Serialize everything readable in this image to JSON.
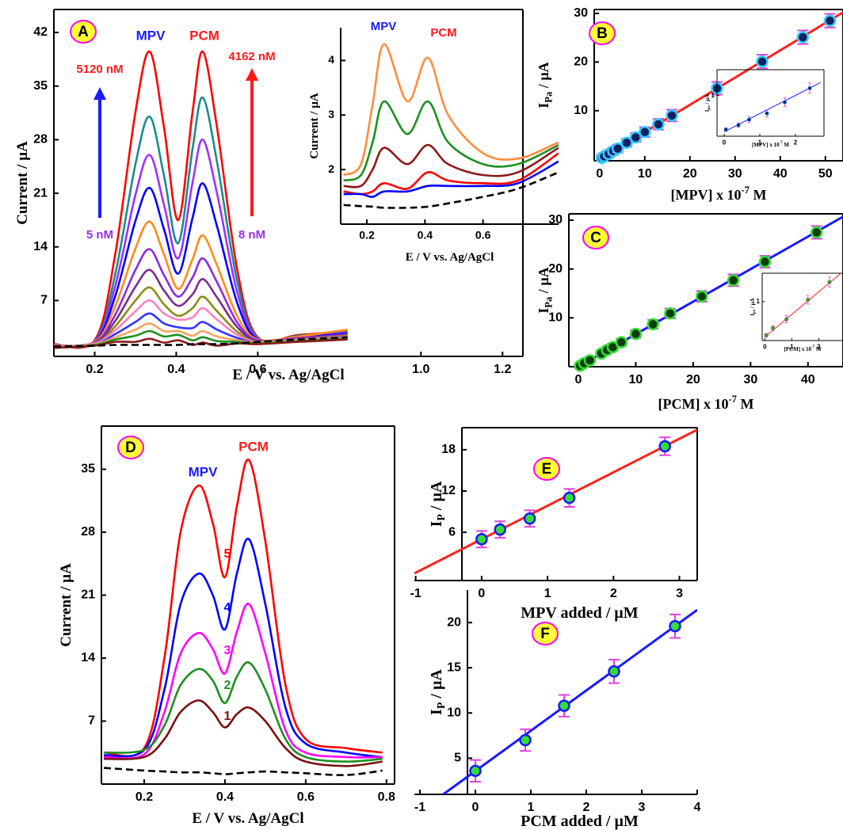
{
  "chart_data": [
    {
      "type": "line",
      "panel_label": "A",
      "x": [
        0.1,
        0.2,
        0.25,
        0.3,
        0.335,
        0.37,
        0.405,
        0.44,
        0.465,
        0.5,
        0.55,
        0.6,
        0.7,
        0.82
      ],
      "series": [
        {
          "color": "#ff0000",
          "values": [
            1.3,
            1.8,
            12.9,
            31.6,
            39.5,
            29.6,
            17.5,
            31.6,
            39.5,
            29.6,
            10.9,
            2.2,
            2.5,
            3.0
          ]
        },
        {
          "color": "#1a8c8c",
          "values": [
            1.2,
            1.7,
            10.3,
            24.8,
            31,
            23.3,
            14.5,
            26.8,
            33.5,
            25.1,
            9.4,
            2.1,
            2.4,
            2.9
          ]
        },
        {
          "color": "#a030ff",
          "values": [
            1.2,
            1.7,
            8.8,
            20.8,
            26,
            19.5,
            12.5,
            22.4,
            28,
            21,
            8,
            2,
            2.3,
            2.8
          ]
        },
        {
          "color": "#0000ff",
          "values": [
            1.1,
            1.6,
            7.5,
            17.4,
            21.7,
            16.3,
            10.5,
            17.8,
            22.3,
            16.7,
            6.6,
            1.9,
            2.2,
            2.7
          ]
        },
        {
          "color": "#ff8c1a",
          "values": [
            1.1,
            1.6,
            6.2,
            13.8,
            17.3,
            13,
            8.5,
            12.4,
            15.5,
            11.6,
            4.9,
            1.9,
            2.3,
            3.2
          ]
        },
        {
          "color": "#8a2be2",
          "values": [
            1,
            1.5,
            5.1,
            11,
            13.7,
            10.3,
            7.5,
            10,
            12.5,
            9.4,
            4.1,
            1.8,
            2.1,
            2.6
          ]
        },
        {
          "color": "#7b2d8e",
          "values": [
            1,
            1.5,
            4.3,
            8.8,
            11,
            8.3,
            6.3,
            7.8,
            9.8,
            7.4,
            3.5,
            1.7,
            2,
            2.5
          ]
        },
        {
          "color": "#8c8c14",
          "values": [
            1,
            1.4,
            3.6,
            7,
            8.7,
            6.5,
            5,
            6,
            7.5,
            5.6,
            2.9,
            1.6,
            1.9,
            2.4
          ]
        },
        {
          "color": "#ff80c0",
          "values": [
            0.9,
            1.4,
            3.1,
            5.6,
            7,
            5.3,
            4.5,
            4.8,
            6,
            4.5,
            2.5,
            1.6,
            1.9,
            2.3
          ]
        },
        {
          "color": "#3333ff",
          "values": [
            0.9,
            1.3,
            2.6,
            4.2,
            5.3,
            4,
            3.5,
            3.4,
            4.2,
            3.2,
            2.1,
            1.5,
            1.8,
            2.2
          ]
        },
        {
          "color": "#f4a460",
          "values": [
            0.9,
            1.3,
            2.2,
            3.2,
            4,
            3,
            3,
            2.4,
            3,
            2.3,
            1.8,
            1.5,
            1.8,
            2.1
          ]
        },
        {
          "color": "#1f8f1f",
          "values": [
            0.8,
            1.2,
            1.9,
            2.4,
            3,
            2.3,
            2.5,
            1.8,
            2.2,
            1.7,
            1.6,
            1.4,
            1.7,
            2
          ]
        },
        {
          "color": "#8b1a1a",
          "values": [
            0.8,
            1.1,
            1.6,
            1.6,
            2,
            1.5,
            1.8,
            1.2,
            1.5,
            1.1,
            1.4,
            1.3,
            1.6,
            1.9
          ]
        },
        {
          "color": "#000000",
          "dashed": true,
          "values": [
            1.0,
            1.1,
            1.2,
            1.2,
            1.2,
            1.2,
            1.2,
            1.3,
            1.3,
            1.3,
            1.4,
            1.6,
            1.9,
            2.2
          ]
        }
      ],
      "xlim": [
        0.1,
        1.25
      ],
      "xticks": [
        0.2,
        0.4,
        0.6,
        {
          "value": 1,
          "label": "1.0"
        },
        1.2
      ],
      "ylim": [
        -0.3,
        45
      ],
      "yticks": [
        7,
        14,
        21,
        28,
        35,
        42
      ],
      "xlabel": {
        "text": "E / V vs. Ag/AgCl"
      },
      "ylabel": {
        "text": "Current / µA"
      },
      "annotations": [
        {
          "text": "MPV",
          "color": "#1a1aff"
        },
        {
          "text": "PCM",
          "color": "#ff1a1a"
        },
        {
          "text": "5120 nM",
          "color": "#ff1a1a"
        },
        {
          "text": "4162 nM",
          "color": "#ff1a1a"
        },
        {
          "text": "5 nM",
          "color": "#9a30e0"
        },
        {
          "text": "8 nM",
          "color": "#9a30e0"
        }
      ]
    },
    {
      "type": "line",
      "x": [
        0.12,
        0.18,
        0.22,
        0.26,
        0.34,
        0.41,
        0.48,
        0.6,
        0.72,
        0.86
      ],
      "series": [
        {
          "color": "#ff8c40",
          "values": [
            1.9,
            2.1,
            3.2,
            4.3,
            3.25,
            4.05,
            3.0,
            2.3,
            2.2,
            2.5
          ]
        },
        {
          "color": "#1f8f1f",
          "values": [
            1.8,
            1.9,
            2.5,
            3.25,
            2.65,
            3.25,
            2.5,
            2.1,
            2.1,
            2.45
          ]
        },
        {
          "color": "#8b1a1a",
          "values": [
            1.7,
            1.7,
            2.0,
            2.4,
            2.1,
            2.45,
            2.1,
            1.9,
            1.95,
            2.4
          ]
        },
        {
          "color": "#ff0000",
          "values": [
            1.6,
            1.55,
            1.6,
            1.75,
            1.65,
            1.95,
            1.8,
            1.75,
            1.8,
            2.3
          ]
        },
        {
          "color": "#0000ff",
          "values": [
            1.55,
            1.55,
            1.5,
            1.6,
            1.6,
            1.7,
            1.7,
            1.7,
            1.75,
            2.15
          ]
        },
        {
          "color": "#000000",
          "dashed": true,
          "values": [
            1.35,
            1.33,
            1.32,
            1.3,
            1.3,
            1.32,
            1.38,
            1.5,
            1.65,
            1.95
          ]
        }
      ],
      "xlim": [
        0.11,
        0.86
      ],
      "xticks": [
        0.2,
        0.4,
        0.6
      ],
      "ylim": [
        1.0,
        4.6
      ],
      "yticks": [
        2,
        3,
        4
      ],
      "xlabel": {
        "text": "E / V vs. Ag/AgCl"
      },
      "ylabel": {
        "text": "Current / µA"
      },
      "annotations": [
        {
          "text": "MPV",
          "color": "#1a1aff"
        },
        {
          "text": "PCM",
          "color": "#ff1a1a"
        }
      ]
    },
    {
      "type": "scatter",
      "panel_label": "B",
      "x": [
        0.5,
        1,
        2,
        3,
        4,
        6,
        8,
        10,
        13,
        16,
        26,
        36,
        45,
        51
      ],
      "values": [
        0.3,
        0.6,
        1.1,
        1.7,
        2.2,
        3.4,
        4.5,
        5.6,
        7.2,
        9,
        14.6,
        20.1,
        25.1,
        28.5
      ],
      "errors": [
        0.6,
        0.6,
        0.7,
        0.7,
        0.8,
        0.8,
        0.9,
        1,
        1.1,
        1.2,
        1.3,
        1.4,
        1.4,
        1.4
      ],
      "fit": {
        "x": [
          0,
          53.9
        ],
        "values": [
          0,
          30.2
        ]
      },
      "marker_color": "#102060",
      "marker_edge": "#33ccff",
      "error_color": "#e040e0",
      "fit_color": "#ff2020",
      "xlim": [
        -1.2,
        53.9
      ],
      "xticks": [
        0,
        10,
        20,
        30,
        40,
        50
      ],
      "ylim": [
        -0.3,
        30.8
      ],
      "yticks": [
        10,
        20,
        30
      ],
      "xlabel": {
        "text": "[MPV] x 10",
        "sup": "-7",
        "tail": " M"
      },
      "ylabel": {
        "text": "I",
        "sub": "Pa",
        "tail": " / µA"
      }
    },
    {
      "type": "scatter",
      "x": [
        0.05,
        0.4,
        0.7,
        1.2,
        1.7,
        2.4
      ],
      "values": [
        0.08,
        0.2,
        0.35,
        0.52,
        0.82,
        1.2
      ],
      "errors": [
        0.05,
        0.06,
        0.08,
        0.1,
        0.12,
        0.14
      ],
      "fit": {
        "x": [
          0,
          2.7
        ],
        "values": [
          0.02,
          1.35
        ]
      },
      "marker_color": "#102060",
      "marker_edge": "#1e90ff",
      "error_color": "#e040e0",
      "fit_color": "#1a1aff",
      "xlim": [
        -0.2,
        2.8
      ],
      "xticks": [
        0,
        1,
        2
      ],
      "ylim": [
        -0.1,
        1.7
      ],
      "yticks": [
        1
      ],
      "xlabel": {
        "text": "[MPV] x 10",
        "sup": "-7",
        "tail": " M"
      },
      "ylabel": {
        "text": "I",
        "sub": "pa",
        "tail": " / µA"
      }
    },
    {
      "type": "scatter",
      "panel_label": "C",
      "x": [
        0.3,
        1,
        2,
        4,
        5,
        6,
        7.5,
        10,
        13,
        16,
        21.5,
        27,
        32.5,
        41.5
      ],
      "values": [
        0.2,
        0.7,
        1.3,
        2.7,
        3.4,
        4,
        5,
        6.7,
        8.7,
        10.9,
        14.4,
        17.7,
        21.5,
        27.5
      ],
      "errors": [
        0.4,
        0.5,
        0.5,
        0.6,
        0.6,
        0.7,
        0.7,
        0.8,
        0.9,
        1,
        1.1,
        1.2,
        1.2,
        1.3
      ],
      "fit": {
        "x": [
          0,
          46.1
        ],
        "values": [
          0,
          30.7
        ]
      },
      "marker_color": "#0a3d0a",
      "marker_edge": "#33dd33",
      "error_color": "#e040e0",
      "fit_color": "#1a1aff",
      "xlim": [
        -1.65,
        46.1
      ],
      "xticks": [
        0,
        10,
        20,
        30,
        40
      ],
      "ylim": [
        0,
        31.3
      ],
      "yticks": [
        10,
        20,
        30
      ],
      "xlabel": {
        "text": "[PCM] x 10",
        "sup": "-7",
        "tail": " M"
      },
      "ylabel": {
        "text": "I",
        "sub": "Pa",
        "tail": " / µA"
      }
    },
    {
      "type": "scatter",
      "x": [
        0.05,
        0.3,
        0.8,
        1.6,
        2.4
      ],
      "values": [
        0.05,
        0.25,
        0.5,
        1.05,
        1.55
      ],
      "errors": [
        0.05,
        0.07,
        0.1,
        0.12,
        0.14
      ],
      "fit": {
        "x": [
          0,
          2.9
        ],
        "values": [
          0,
          1.85
        ]
      },
      "marker_color": "#6b8e23",
      "marker_edge": "#2e8b57",
      "error_color": "#e040e0",
      "fit_color": "#ff2020",
      "xlim": [
        -0.1,
        2.9
      ],
      "xticks": [
        0,
        1,
        2
      ],
      "ylim": [
        -0.1,
        1.8
      ],
      "yticks": [
        1
      ],
      "xlabel": {
        "text": "[PCM] x 10",
        "sup": "-7",
        "tail": " M"
      },
      "ylabel": {
        "text": "I",
        "sub": "pa",
        "tail": " / µA"
      }
    },
    {
      "type": "line",
      "panel_label": "D",
      "x": [
        0.1,
        0.2,
        0.25,
        0.29,
        0.335,
        0.37,
        0.4,
        0.43,
        0.46,
        0.5,
        0.55,
        0.6,
        0.7,
        0.79
      ],
      "series": [
        {
          "color": "#ff0000",
          "values": [
            3.5,
            4,
            14,
            28,
            33.2,
            29,
            23,
            31,
            36,
            27,
            11,
            5,
            4,
            3.5
          ]
        },
        {
          "color": "#0000ff",
          "values": [
            3.2,
            3.8,
            10.5,
            20,
            23.4,
            21,
            17.2,
            23.5,
            27.2,
            20,
            8.5,
            4.5,
            3.5,
            3
          ]
        },
        {
          "color": "#ff00ff",
          "values": [
            3,
            3.3,
            8,
            14.5,
            16.8,
            15,
            12.3,
            17,
            20,
            14.5,
            6,
            3.5,
            3,
            3
          ]
        },
        {
          "color": "#1f8f1f",
          "values": [
            3.5,
            3.8,
            6.5,
            11,
            12.8,
            11.5,
            9,
            12,
            13.5,
            10.5,
            5,
            3,
            2.5,
            2.8
          ]
        },
        {
          "color": "#7a1010",
          "values": [
            2.8,
            3,
            5,
            8,
            9.3,
            8,
            6.3,
            7.8,
            8.5,
            7,
            4,
            2.5,
            2,
            2.5
          ]
        },
        {
          "color": "#000000",
          "dashed": true,
          "values": [
            1.8,
            1.5,
            1.4,
            1.3,
            1.3,
            1.2,
            1.1,
            1.2,
            1.3,
            1.4,
            1.3,
            1.2,
            1,
            1.5
          ]
        }
      ],
      "xlim": [
        0.094,
        0.82
      ],
      "xticks": [
        0.2,
        0.4,
        0.6,
        0.8
      ],
      "ylim": [
        0,
        39.8
      ],
      "yticks": [
        7,
        14,
        21,
        28,
        35
      ],
      "xlabel": {
        "text": "E / V vs. Ag/AgCl"
      },
      "ylabel": {
        "text": "Current / µA"
      },
      "annotations": [
        {
          "text": "MPV",
          "color": "#1a1aff"
        },
        {
          "text": "PCM",
          "color": "#ff1a1a"
        },
        {
          "text": "5",
          "color": "#ff0000"
        },
        {
          "text": "4",
          "color": "#0000ff"
        },
        {
          "text": "3",
          "color": "#ff00ff"
        },
        {
          "text": "2",
          "color": "#1f8f1f"
        },
        {
          "text": "1",
          "color": "#7a1010"
        }
      ]
    },
    {
      "type": "scatter",
      "panel_label": "E",
      "x": [
        0,
        0.28,
        0.73,
        1.33,
        2.78
      ],
      "values": [
        5,
        6.4,
        8,
        11,
        18.5
      ],
      "errors": [
        1.2,
        1.2,
        1.2,
        1.3,
        1.3
      ],
      "fit": {
        "x": [
          -1.02,
          3.27
        ],
        "values": [
          0.04,
          20.9
        ]
      },
      "marker_color": "#33dd33",
      "marker_edge": "#1a1aff",
      "error_color": "#e040e0",
      "fit_color": "#ff2020",
      "xlim": [
        -1.02,
        3.27
      ],
      "xticks": [
        -1,
        0,
        1,
        2,
        3
      ],
      "ylim": [
        -1,
        21.2
      ],
      "yticks": [
        6,
        12,
        18
      ],
      "xlabel": {
        "text": "MPV added / µM"
      },
      "ylabel": {
        "text": "I",
        "sub": "P",
        "tail": " / µA"
      }
    },
    {
      "type": "scatter",
      "panel_label": "F",
      "x": [
        0,
        0.9,
        1.6,
        2.5,
        3.6
      ],
      "values": [
        3.6,
        7,
        10.8,
        14.6,
        19.6
      ],
      "errors": [
        1.2,
        1.2,
        1.2,
        1.3,
        1.3
      ],
      "fit": {
        "x": [
          -0.58,
          4
        ],
        "values": [
          1,
          21.4
        ]
      },
      "marker_color": "#33dd33",
      "marker_edge": "#1a1aff",
      "error_color": "#e040e0",
      "fit_color": "#1a1aff",
      "xlim": [
        -1.1,
        4
      ],
      "xticks": [
        -1,
        0,
        1,
        2,
        3,
        4
      ],
      "ylim": [
        1,
        23.6
      ],
      "yticks": [
        5,
        10,
        15,
        20
      ],
      "xlabel": {
        "text": "PCM added / µM"
      },
      "ylabel": {
        "text": "I",
        "sub": "P",
        "tail": " / µA"
      }
    }
  ]
}
